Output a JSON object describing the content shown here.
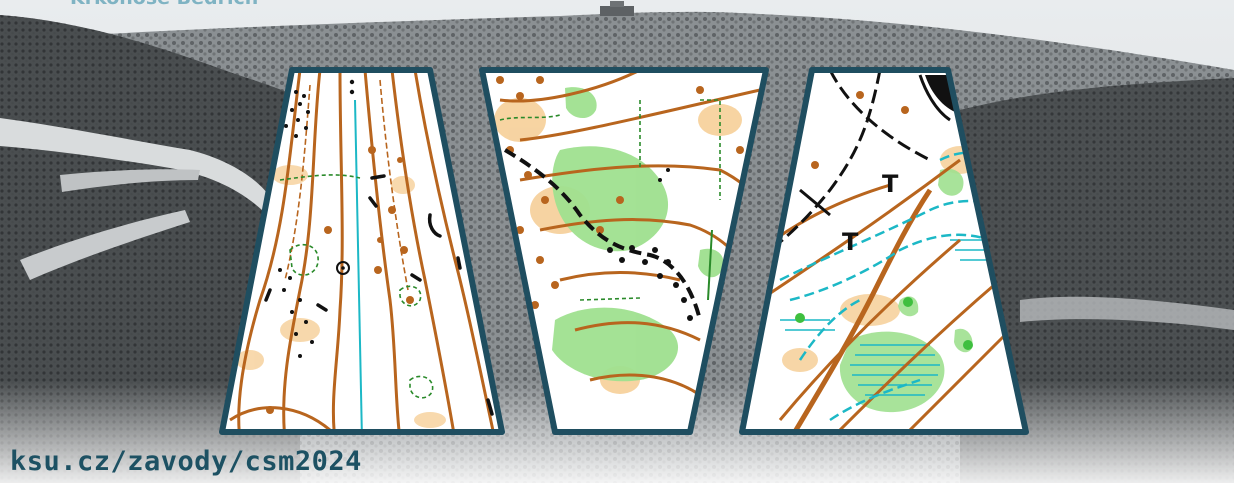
{
  "banner": {
    "url_text": "ksu.cz/zavody/csm2024",
    "cut_text": "Krkonoše Bedřich",
    "colors": {
      "url_text": "#1d5163",
      "panel_border": "#1f4e60",
      "contour": "#b8651e",
      "green": "#9fe08f",
      "yellow": "#f6cf98",
      "water": "#1cb8c6",
      "path": "#111111"
    }
  },
  "map_panels": [
    {
      "id": "left",
      "symbols": [
        "contour-lines",
        "boulder-dots",
        "knolls",
        "vegetation-boundary",
        "stream"
      ]
    },
    {
      "id": "middle",
      "symbols": [
        "contour-lines",
        "green-vegetation",
        "open-land",
        "rocky-ground",
        "path"
      ]
    },
    {
      "id": "right",
      "symbols": [
        "contour-lines",
        "marsh",
        "stream",
        "path",
        "T-markers"
      ],
      "labels": [
        "T",
        "T"
      ]
    }
  ]
}
